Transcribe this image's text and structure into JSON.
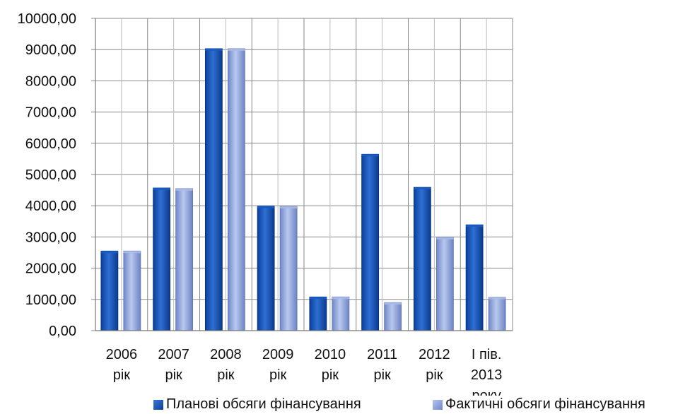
{
  "chart_data": {
    "type": "bar",
    "categories": [
      [
        "2006",
        "рік"
      ],
      [
        "2007",
        "рік"
      ],
      [
        "2008",
        "рік"
      ],
      [
        "2009",
        "рік"
      ],
      [
        "2010",
        "рік"
      ],
      [
        "2011",
        "рік"
      ],
      [
        "2012",
        "рік"
      ],
      [
        "І пів.",
        "2013",
        "року"
      ]
    ],
    "series": [
      {
        "name": "Планові обсяги фінансування",
        "values": [
          2550,
          4570,
          9030,
          3990,
          1080,
          5650,
          4590,
          3390
        ],
        "color": "#0d4aa8"
      },
      {
        "name": "Фактичні обсяги фінансування",
        "values": [
          2550,
          4550,
          9030,
          3980,
          1080,
          900,
          2990,
          1070
        ],
        "color": "#8fa6de"
      }
    ],
    "yticks": [
      "0,00",
      "1000,00",
      "2000,00",
      "3000,00",
      "4000,00",
      "5000,00",
      "6000,00",
      "7000,00",
      "8000,00",
      "9000,00",
      "10000,00"
    ],
    "ylim": [
      0,
      10000
    ],
    "grid": true,
    "legend_position": "bottom"
  }
}
